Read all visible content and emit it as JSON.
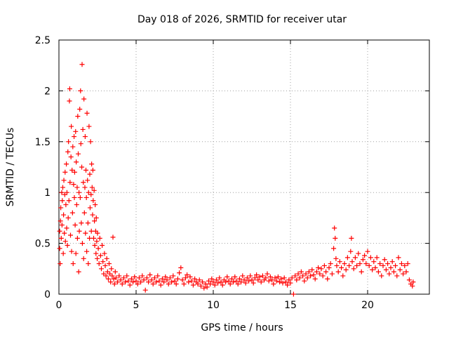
{
  "chart_data": {
    "type": "scatter",
    "title": "Day 018 of 2026, SRMTID for receiver utar",
    "xlabel": "GPS time / hours",
    "ylabel": "SRMTID / TECUs",
    "xlim": [
      0,
      24
    ],
    "ylim": [
      0,
      2.5
    ],
    "x_ticks": [
      0,
      5,
      10,
      15,
      20
    ],
    "x_tick_labels": [
      "0",
      "5",
      "10",
      "15",
      "20"
    ],
    "y_ticks": [
      0,
      0.5,
      1,
      1.5,
      2,
      2.5
    ],
    "y_tick_labels": [
      "0",
      "0.5",
      "1",
      "1.5",
      "2",
      "2.5"
    ],
    "grid": true,
    "marker": "plus",
    "series_color": "#ff0000",
    "series": [
      {
        "name": "SRMTID",
        "points": [
          [
            0.05,
            0.45
          ],
          [
            0.05,
            0.62
          ],
          [
            0.08,
            0.3
          ],
          [
            0.1,
            0.72
          ],
          [
            0.12,
            0.85
          ],
          [
            0.15,
            0.55
          ],
          [
            0.18,
            1.0
          ],
          [
            0.2,
            0.68
          ],
          [
            0.22,
            0.92
          ],
          [
            0.25,
            1.05
          ],
          [
            0.28,
            0.4
          ],
          [
            0.3,
            0.78
          ],
          [
            0.32,
            1.12
          ],
          [
            0.35,
            0.6
          ],
          [
            0.38,
            0.98
          ],
          [
            0.4,
            1.2
          ],
          [
            0.42,
            0.52
          ],
          [
            0.45,
            0.88
          ],
          [
            0.48,
            1.28
          ],
          [
            0.5,
            0.65
          ],
          [
            0.52,
            1.0
          ],
          [
            0.55,
            0.48
          ],
          [
            0.58,
            1.4
          ],
          [
            0.6,
            0.75
          ],
          [
            0.62,
            1.5
          ],
          [
            0.65,
            0.92
          ],
          [
            0.68,
            1.9
          ],
          [
            0.7,
            2.02
          ],
          [
            0.72,
            1.1
          ],
          [
            0.75,
            0.58
          ],
          [
            0.78,
            1.35
          ],
          [
            0.8,
            1.65
          ],
          [
            0.82,
            0.42
          ],
          [
            0.85,
            1.22
          ],
          [
            0.88,
            0.8
          ],
          [
            0.9,
            1.45
          ],
          [
            0.92,
            0.3
          ],
          [
            0.95,
            1.08
          ],
          [
            0.98,
            1.55
          ],
          [
            1.0,
            0.95
          ],
          [
            1.02,
            1.2
          ],
          [
            1.05,
            0.68
          ],
          [
            1.08,
            1.6
          ],
          [
            1.1,
            0.4
          ],
          [
            1.12,
            1.3
          ],
          [
            1.15,
            0.88
          ],
          [
            1.18,
            1.05
          ],
          [
            1.2,
            0.55
          ],
          [
            1.22,
            1.75
          ],
          [
            1.25,
            1.38
          ],
          [
            1.28,
            0.22
          ],
          [
            1.3,
            1.0
          ],
          [
            1.32,
            0.62
          ],
          [
            1.35,
            1.82
          ],
          [
            1.38,
            0.95
          ],
          [
            1.4,
            2.0
          ],
          [
            1.42,
            1.48
          ],
          [
            1.45,
            0.7
          ],
          [
            1.48,
            1.25
          ],
          [
            1.5,
            2.26
          ],
          [
            1.52,
            0.5
          ],
          [
            1.55,
            1.62
          ],
          [
            1.58,
            1.1
          ],
          [
            1.6,
            0.35
          ],
          [
            1.62,
            1.92
          ],
          [
            1.65,
            0.8
          ],
          [
            1.68,
            1.05
          ],
          [
            1.7,
            1.55
          ],
          [
            1.72,
            0.6
          ],
          [
            1.75,
            1.22
          ],
          [
            1.78,
            0.95
          ],
          [
            1.8,
            0.42
          ],
          [
            1.82,
            1.78
          ],
          [
            1.85,
            1.12
          ],
          [
            1.88,
            0.7
          ],
          [
            1.9,
            0.3
          ],
          [
            1.92,
            1.0
          ],
          [
            1.95,
            1.65
          ],
          [
            1.98,
            0.55
          ],
          [
            2.0,
            1.18
          ],
          [
            2.02,
            0.85
          ],
          [
            2.05,
            1.5
          ],
          [
            2.08,
            0.98
          ],
          [
            2.1,
            0.62
          ],
          [
            2.12,
            1.28
          ],
          [
            2.15,
            1.05
          ],
          [
            2.18,
            0.78
          ],
          [
            2.2,
            1.22
          ],
          [
            2.22,
            0.92
          ],
          [
            2.25,
            0.55
          ],
          [
            2.28,
            1.02
          ],
          [
            2.3,
            0.72
          ],
          [
            2.32,
            0.48
          ],
          [
            2.35,
            0.88
          ],
          [
            2.38,
            0.62
          ],
          [
            2.4,
            0.4
          ],
          [
            2.42,
            0.75
          ],
          [
            2.45,
            0.52
          ],
          [
            2.48,
            0.35
          ],
          [
            2.5,
            0.6
          ],
          [
            2.55,
            0.45
          ],
          [
            2.6,
            0.3
          ],
          [
            2.65,
            0.55
          ],
          [
            2.7,
            0.38
          ],
          [
            2.75,
            0.25
          ],
          [
            2.8,
            0.48
          ],
          [
            2.85,
            0.32
          ],
          [
            2.9,
            0.2
          ],
          [
            2.95,
            0.4
          ],
          [
            3.0,
            0.28
          ],
          [
            3.05,
            0.18
          ],
          [
            3.1,
            0.35
          ],
          [
            3.15,
            0.22
          ],
          [
            3.2,
            0.15
          ],
          [
            3.25,
            0.3
          ],
          [
            3.3,
            0.2
          ],
          [
            3.35,
            0.12
          ],
          [
            3.4,
            0.25
          ],
          [
            3.45,
            0.18
          ],
          [
            3.5,
            0.56
          ],
          [
            3.55,
            0.15
          ],
          [
            3.6,
            0.1
          ],
          [
            3.65,
            0.22
          ],
          [
            3.7,
            0.16
          ],
          [
            3.8,
            0.12
          ],
          [
            3.9,
            0.18
          ],
          [
            4.0,
            0.14
          ],
          [
            4.1,
            0.1
          ],
          [
            4.2,
            0.16
          ],
          [
            4.3,
            0.12
          ],
          [
            4.4,
            0.18
          ],
          [
            4.5,
            0.13
          ],
          [
            4.6,
            0.09
          ],
          [
            4.7,
            0.15
          ],
          [
            4.8,
            0.12
          ],
          [
            4.9,
            0.17
          ],
          [
            5.0,
            0.13
          ],
          [
            5.1,
            0.1
          ],
          [
            5.2,
            0.16
          ],
          [
            5.3,
            0.12
          ],
          [
            5.4,
            0.18
          ],
          [
            5.5,
            0.14
          ],
          [
            5.6,
            0.04
          ],
          [
            5.7,
            0.16
          ],
          [
            5.8,
            0.12
          ],
          [
            5.9,
            0.19
          ],
          [
            6.0,
            0.14
          ],
          [
            6.1,
            0.1
          ],
          [
            6.2,
            0.16
          ],
          [
            6.3,
            0.12
          ],
          [
            6.4,
            0.18
          ],
          [
            6.5,
            0.13
          ],
          [
            6.6,
            0.09
          ],
          [
            6.7,
            0.15
          ],
          [
            6.8,
            0.12
          ],
          [
            6.9,
            0.17
          ],
          [
            7.0,
            0.14
          ],
          [
            7.1,
            0.1
          ],
          [
            7.2,
            0.16
          ],
          [
            7.3,
            0.12
          ],
          [
            7.4,
            0.18
          ],
          [
            7.5,
            0.13
          ],
          [
            7.6,
            0.1
          ],
          [
            7.7,
            0.15
          ],
          [
            7.8,
            0.21
          ],
          [
            7.9,
            0.26
          ],
          [
            8.0,
            0.14
          ],
          [
            8.1,
            0.1
          ],
          [
            8.2,
            0.16
          ],
          [
            8.3,
            0.19
          ],
          [
            8.4,
            0.12
          ],
          [
            8.5,
            0.17
          ],
          [
            8.6,
            0.13
          ],
          [
            8.7,
            0.09
          ],
          [
            8.8,
            0.15
          ],
          [
            8.9,
            0.12
          ],
          [
            9.0,
            0.1
          ],
          [
            9.1,
            0.14
          ],
          [
            9.2,
            0.08
          ],
          [
            9.3,
            0.12
          ],
          [
            9.4,
            0.06
          ],
          [
            9.5,
            0.1
          ],
          [
            9.6,
            0.07
          ],
          [
            9.7,
            0.13
          ],
          [
            9.8,
            0.1
          ],
          [
            9.9,
            0.15
          ],
          [
            10.0,
            0.12
          ],
          [
            10.1,
            0.09
          ],
          [
            10.2,
            0.14
          ],
          [
            10.3,
            0.11
          ],
          [
            10.4,
            0.16
          ],
          [
            10.5,
            0.12
          ],
          [
            10.6,
            0.09
          ],
          [
            10.7,
            0.14
          ],
          [
            10.8,
            0.12
          ],
          [
            10.9,
            0.17
          ],
          [
            11.0,
            0.13
          ],
          [
            11.1,
            0.1
          ],
          [
            11.2,
            0.15
          ],
          [
            11.3,
            0.12
          ],
          [
            11.4,
            0.17
          ],
          [
            11.5,
            0.13
          ],
          [
            11.6,
            0.1
          ],
          [
            11.7,
            0.15
          ],
          [
            11.8,
            0.12
          ],
          [
            11.9,
            0.18
          ],
          [
            12.0,
            0.14
          ],
          [
            12.1,
            0.11
          ],
          [
            12.2,
            0.16
          ],
          [
            12.3,
            0.13
          ],
          [
            12.4,
            0.18
          ],
          [
            12.5,
            0.14
          ],
          [
            12.6,
            0.11
          ],
          [
            12.7,
            0.16
          ],
          [
            12.8,
            0.19
          ],
          [
            12.9,
            0.14
          ],
          [
            13.0,
            0.17
          ],
          [
            13.1,
            0.12
          ],
          [
            13.2,
            0.18
          ],
          [
            13.3,
            0.14
          ],
          [
            13.4,
            0.16
          ],
          [
            13.5,
            0.2
          ],
          [
            13.6,
            0.13
          ],
          [
            13.7,
            0.17
          ],
          [
            13.8,
            0.14
          ],
          [
            13.9,
            0.1
          ],
          [
            14.0,
            0.16
          ],
          [
            14.1,
            0.13
          ],
          [
            14.2,
            0.17
          ],
          [
            14.3,
            0.12
          ],
          [
            14.4,
            0.15
          ],
          [
            14.5,
            0.11
          ],
          [
            14.6,
            0.16
          ],
          [
            14.7,
            0.12
          ],
          [
            14.8,
            0.09
          ],
          [
            14.9,
            0.14
          ],
          [
            15.0,
            0.11
          ],
          [
            15.1,
            0.16
          ],
          [
            15.2,
            0.0
          ],
          [
            15.3,
            0.18
          ],
          [
            15.4,
            0.14
          ],
          [
            15.5,
            0.2
          ],
          [
            15.6,
            0.16
          ],
          [
            15.7,
            0.22
          ],
          [
            15.8,
            0.18
          ],
          [
            15.9,
            0.13
          ],
          [
            16.0,
            0.2
          ],
          [
            16.1,
            0.16
          ],
          [
            16.2,
            0.22
          ],
          [
            16.3,
            0.18
          ],
          [
            16.4,
            0.24
          ],
          [
            16.5,
            0.19
          ],
          [
            16.6,
            0.15
          ],
          [
            16.7,
            0.22
          ],
          [
            16.8,
            0.26
          ],
          [
            16.9,
            0.2
          ],
          [
            17.0,
            0.25
          ],
          [
            17.1,
            0.18
          ],
          [
            17.2,
            0.28
          ],
          [
            17.3,
            0.22
          ],
          [
            17.4,
            0.15
          ],
          [
            17.5,
            0.26
          ],
          [
            17.6,
            0.3
          ],
          [
            17.7,
            0.2
          ],
          [
            17.8,
            0.45
          ],
          [
            17.85,
            0.65
          ],
          [
            17.9,
            0.55
          ],
          [
            17.95,
            0.35
          ],
          [
            18.0,
            0.28
          ],
          [
            18.1,
            0.22
          ],
          [
            18.2,
            0.32
          ],
          [
            18.3,
            0.26
          ],
          [
            18.4,
            0.18
          ],
          [
            18.5,
            0.3
          ],
          [
            18.6,
            0.24
          ],
          [
            18.7,
            0.36
          ],
          [
            18.8,
            0.28
          ],
          [
            18.9,
            0.42
          ],
          [
            18.95,
            0.55
          ],
          [
            19.0,
            0.32
          ],
          [
            19.1,
            0.25
          ],
          [
            19.2,
            0.36
          ],
          [
            19.3,
            0.28
          ],
          [
            19.4,
            0.4
          ],
          [
            19.5,
            0.3
          ],
          [
            19.6,
            0.22
          ],
          [
            19.7,
            0.34
          ],
          [
            19.8,
            0.38
          ],
          [
            19.9,
            0.3
          ],
          [
            20.0,
            0.42
          ],
          [
            20.1,
            0.28
          ],
          [
            20.2,
            0.36
          ],
          [
            20.3,
            0.24
          ],
          [
            20.4,
            0.32
          ],
          [
            20.5,
            0.26
          ],
          [
            20.6,
            0.36
          ],
          [
            20.7,
            0.22
          ],
          [
            20.8,
            0.3
          ],
          [
            20.9,
            0.18
          ],
          [
            21.0,
            0.28
          ],
          [
            21.1,
            0.34
          ],
          [
            21.2,
            0.24
          ],
          [
            21.3,
            0.3
          ],
          [
            21.4,
            0.2
          ],
          [
            21.5,
            0.26
          ],
          [
            21.6,
            0.32
          ],
          [
            21.7,
            0.22
          ],
          [
            21.8,
            0.28
          ],
          [
            21.9,
            0.18
          ],
          [
            22.0,
            0.36
          ],
          [
            22.1,
            0.24
          ],
          [
            22.2,
            0.3
          ],
          [
            22.3,
            0.2
          ],
          [
            22.4,
            0.28
          ],
          [
            22.5,
            0.22
          ],
          [
            22.6,
            0.3
          ],
          [
            22.7,
            0.14
          ],
          [
            22.8,
            0.1
          ],
          [
            22.9,
            0.08
          ],
          [
            22.95,
            0.12
          ]
        ]
      }
    ]
  }
}
